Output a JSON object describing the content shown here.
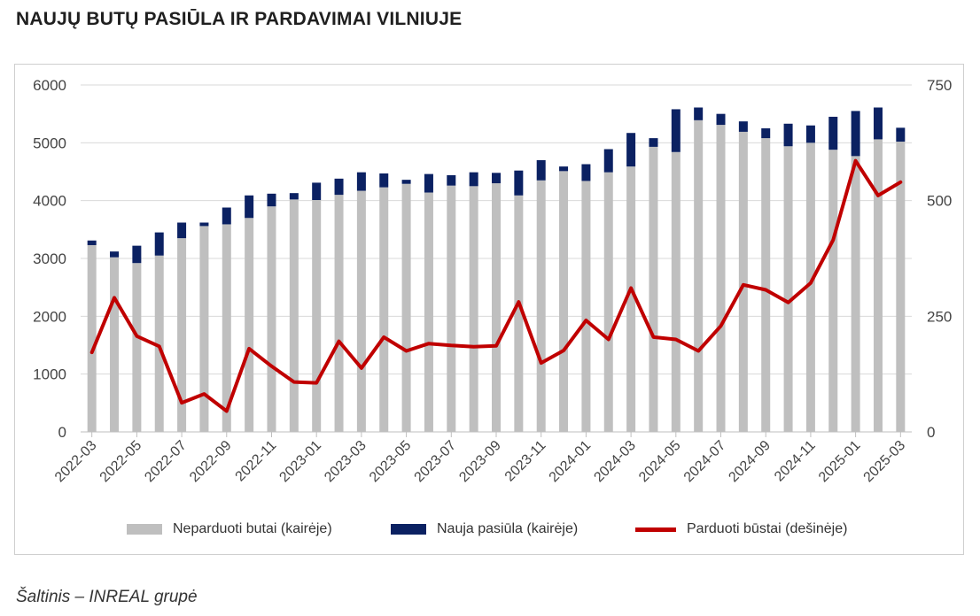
{
  "page": {
    "title": "NAUJŲ BUTŲ PASIŪLA IR PARDAVIMAI VILNIUJE",
    "source": "Šaltinis – INREAL grupė"
  },
  "chart_data": {
    "type": "bar",
    "stacked": true,
    "x": [
      "2022-03",
      "2022-04",
      "2022-05",
      "2022-06",
      "2022-07",
      "2022-08",
      "2022-09",
      "2022-10",
      "2022-11",
      "2022-12",
      "2023-01",
      "2023-02",
      "2023-03",
      "2023-04",
      "2023-05",
      "2023-06",
      "2023-07",
      "2023-08",
      "2023-09",
      "2023-10",
      "2023-11",
      "2023-12",
      "2024-01",
      "2024-02",
      "2024-03",
      "2024-04",
      "2024-05",
      "2024-06",
      "2024-07",
      "2024-08",
      "2024-09",
      "2024-10",
      "2024-11",
      "2024-12",
      "2025-01",
      "2025-02",
      "2025-03"
    ],
    "x_tick_labels": [
      "2022-03",
      "2022-05",
      "2022-07",
      "2022-09",
      "2022-11",
      "2023-01",
      "2023-03",
      "2023-05",
      "2023-07",
      "2023-09",
      "2023-11",
      "2024-01",
      "2024-03",
      "2024-05",
      "2024-07",
      "2024-09",
      "2024-11",
      "2025-01",
      "2025-03"
    ],
    "y_left": {
      "ticks": [
        0,
        1000,
        2000,
        3000,
        4000,
        5000,
        6000
      ],
      "lim": [
        0,
        6000
      ]
    },
    "y_right": {
      "ticks": [
        0,
        250,
        500,
        750
      ],
      "lim": [
        0,
        750
      ]
    },
    "grid": true,
    "legend_position": "bottom",
    "series": [
      {
        "name": "Neparduoti butai (kairėje)",
        "kind": "bar",
        "axis": "left",
        "color": "#bfbfbf",
        "values": [
          3230,
          3020,
          2920,
          3050,
          3350,
          3560,
          3590,
          3700,
          3900,
          4020,
          4010,
          4100,
          4170,
          4230,
          4290,
          4140,
          4260,
          4250,
          4300,
          4090,
          4350,
          4510,
          4340,
          4490,
          4590,
          4930,
          4840,
          5390,
          5310,
          5190,
          5080,
          4940,
          5000,
          4880,
          4770,
          5060,
          5020
        ]
      },
      {
        "name": "Nauja pasiūla (kairėje)",
        "kind": "bar",
        "axis": "left",
        "color": "#0b2162",
        "values": [
          80,
          100,
          300,
          400,
          270,
          60,
          290,
          390,
          220,
          110,
          300,
          280,
          320,
          240,
          70,
          320,
          180,
          240,
          180,
          430,
          350,
          80,
          290,
          400,
          580,
          150,
          740,
          220,
          190,
          180,
          170,
          390,
          300,
          570,
          780,
          550,
          240
        ]
      },
      {
        "name": "Parduoti būstai (dešinėje)",
        "kind": "line",
        "axis": "right",
        "color": "#c00000",
        "values": [
          172,
          290,
          207,
          185,
          63,
          82,
          45,
          180,
          142,
          108,
          106,
          196,
          138,
          205,
          175,
          191,
          187,
          184,
          186,
          281,
          149,
          176,
          241,
          200,
          311,
          205,
          200,
          175,
          229,
          318,
          307,
          280,
          322,
          415,
          586,
          511,
          540
        ]
      }
    ]
  }
}
